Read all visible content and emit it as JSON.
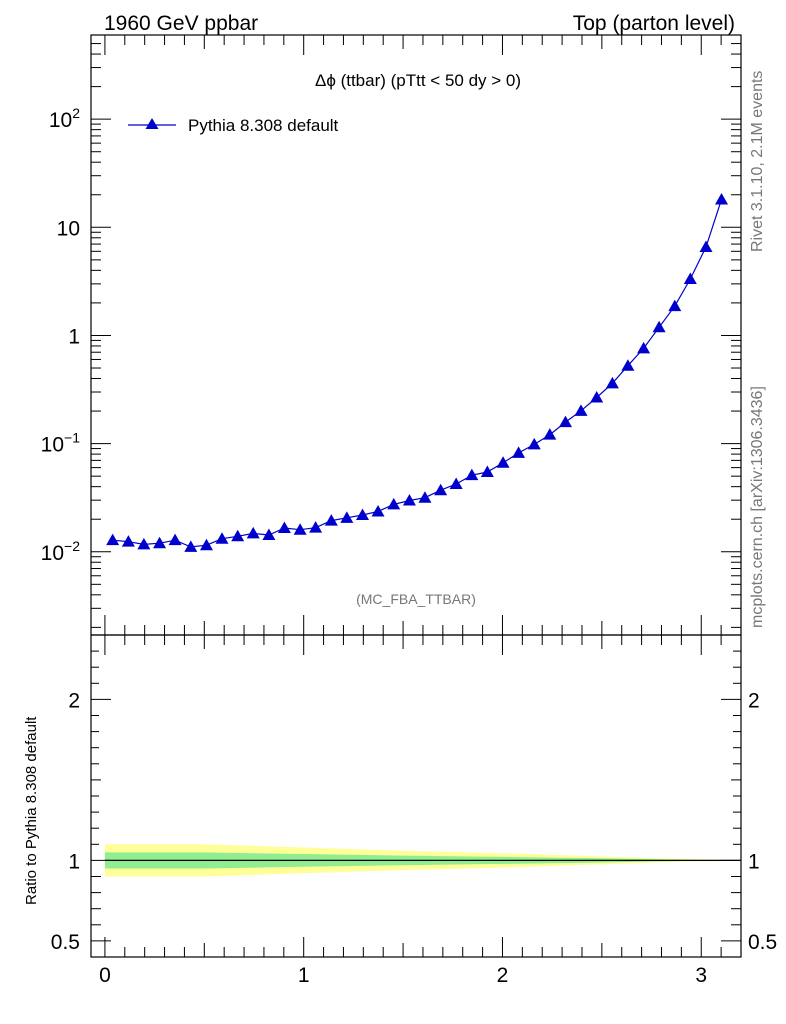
{
  "header": {
    "left": "1960 GeV ppbar",
    "right": "Top (parton level)"
  },
  "side_labels": {
    "rivet": "Rivet 3.1.10,  2.1M events",
    "mcplots": "mcplots.cern.ch [arXiv:1306.3436]"
  },
  "colors": {
    "series": "#0000cc",
    "band_inner": "#90ee90",
    "band_outer": "#ffff99"
  },
  "chart_data": [
    {
      "type": "line",
      "title": "Δϕ (ttbar) (pTtt < 50 dy > 0)",
      "xlabel": "",
      "ylabel": "",
      "yscale": "log",
      "xlim": [
        -0.07,
        3.2
      ],
      "ylim": [
        0.0017,
        600
      ],
      "y_ticks": [
        "10^-2",
        "10^-1",
        "1",
        "10",
        "10^2"
      ],
      "legend": {
        "placement": "top-left",
        "entries": [
          "Pythia 8.308 default"
        ]
      },
      "watermark": "(MC_FBA_TTBAR)",
      "series": [
        {
          "name": "Pythia 8.308 default",
          "x": [
            0.039,
            0.118,
            0.196,
            0.275,
            0.353,
            0.432,
            0.511,
            0.589,
            0.668,
            0.746,
            0.825,
            0.903,
            0.982,
            1.06,
            1.139,
            1.217,
            1.296,
            1.374,
            1.453,
            1.532,
            1.61,
            1.689,
            1.767,
            1.846,
            1.924,
            2.003,
            2.081,
            2.16,
            2.238,
            2.317,
            2.395,
            2.474,
            2.553,
            2.631,
            2.71,
            2.788,
            2.867,
            2.945,
            3.024,
            3.102
          ],
          "y": [
            0.0128,
            0.0124,
            0.0117,
            0.012,
            0.0128,
            0.0111,
            0.0115,
            0.0132,
            0.0139,
            0.0148,
            0.0143,
            0.0166,
            0.016,
            0.0167,
            0.0194,
            0.0206,
            0.0219,
            0.0236,
            0.0274,
            0.0298,
            0.0316,
            0.0371,
            0.0423,
            0.0511,
            0.0546,
            0.0665,
            0.0821,
            0.0983,
            0.121,
            0.158,
            0.201,
            0.267,
            0.361,
            0.525,
            0.76,
            1.19,
            1.87,
            3.33,
            6.58,
            18.1
          ]
        }
      ]
    },
    {
      "type": "area",
      "title": "",
      "xlabel": "",
      "ylabel": "Ratio to Pythia 8.308 default",
      "xlim": [
        -0.07,
        3.2
      ],
      "ylim": [
        0.4,
        2.4
      ],
      "x_ticks": [
        "0",
        "1",
        "2",
        "3"
      ],
      "y_ticks": [
        "0.5",
        "1",
        "2"
      ],
      "series": [
        {
          "name": "Pythia 8.308 default",
          "x": [
            0.0,
            0.5,
            1.0,
            1.5,
            2.0,
            2.5,
            2.8,
            3.0,
            3.2
          ],
          "values": [
            1,
            1,
            1,
            1,
            1,
            1,
            1,
            1,
            1
          ],
          "inner_band": [
            0.05,
            0.05,
            0.04,
            0.03,
            0.022,
            0.013,
            0.006,
            0.003,
            0.002
          ],
          "outer_band": [
            0.1,
            0.1,
            0.08,
            0.06,
            0.045,
            0.025,
            0.012,
            0.006,
            0.003
          ]
        }
      ]
    }
  ]
}
